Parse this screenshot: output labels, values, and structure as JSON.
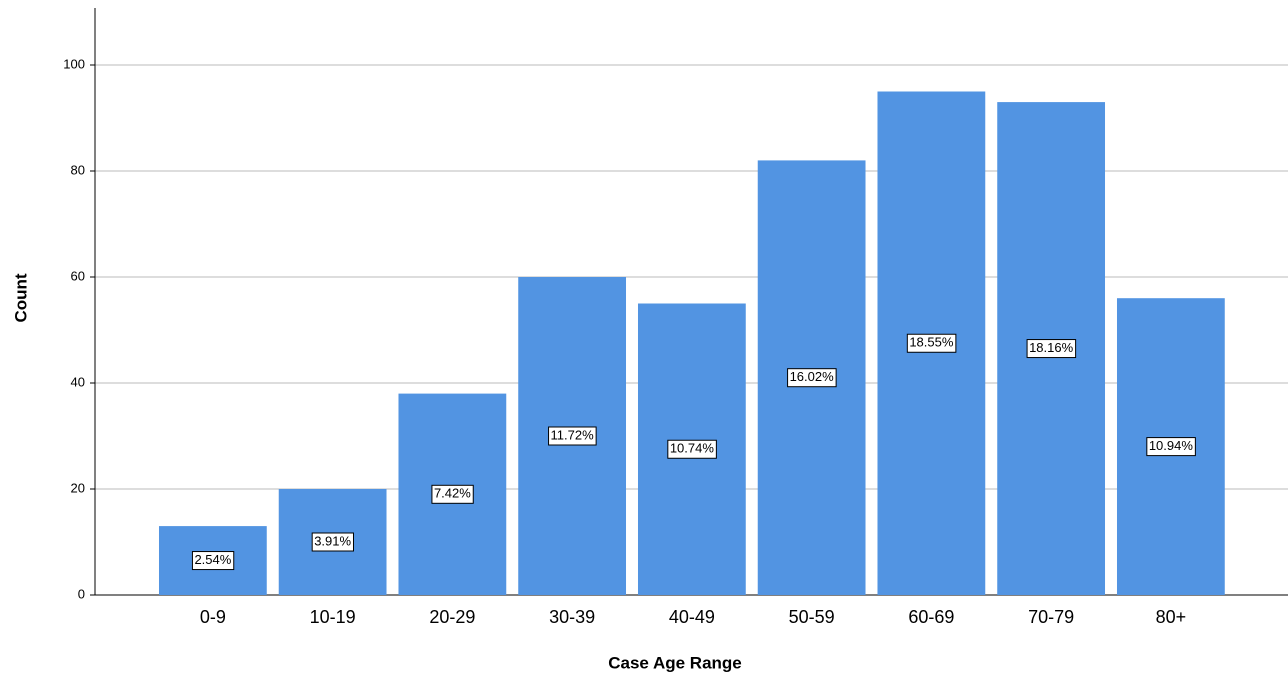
{
  "chart_data": {
    "type": "bar",
    "x_label": "Case Age Range",
    "y_label": "Count",
    "categories": [
      "0-9",
      "10-19",
      "20-29",
      "30-39",
      "40-49",
      "50-59",
      "60-69",
      "70-79",
      "80+"
    ],
    "values": [
      13,
      20,
      38,
      60,
      55,
      82,
      95,
      93,
      56
    ],
    "percent_labels": {
      "values": [
        2.54,
        3.91,
        7.42,
        11.72,
        10.74,
        16.02,
        18.55,
        18.16,
        10.94
      ],
      "labels": [
        "2.54%",
        "3.91%",
        "7.42%",
        "11.72%",
        "10.74%",
        "16.02%",
        "18.55%",
        "18.16%",
        "10.94%"
      ]
    },
    "color": "#5294e2",
    "ylim": [
      0,
      110
    ],
    "yticks": [
      0,
      20,
      40,
      60,
      80,
      100
    ],
    "grid": true
  }
}
